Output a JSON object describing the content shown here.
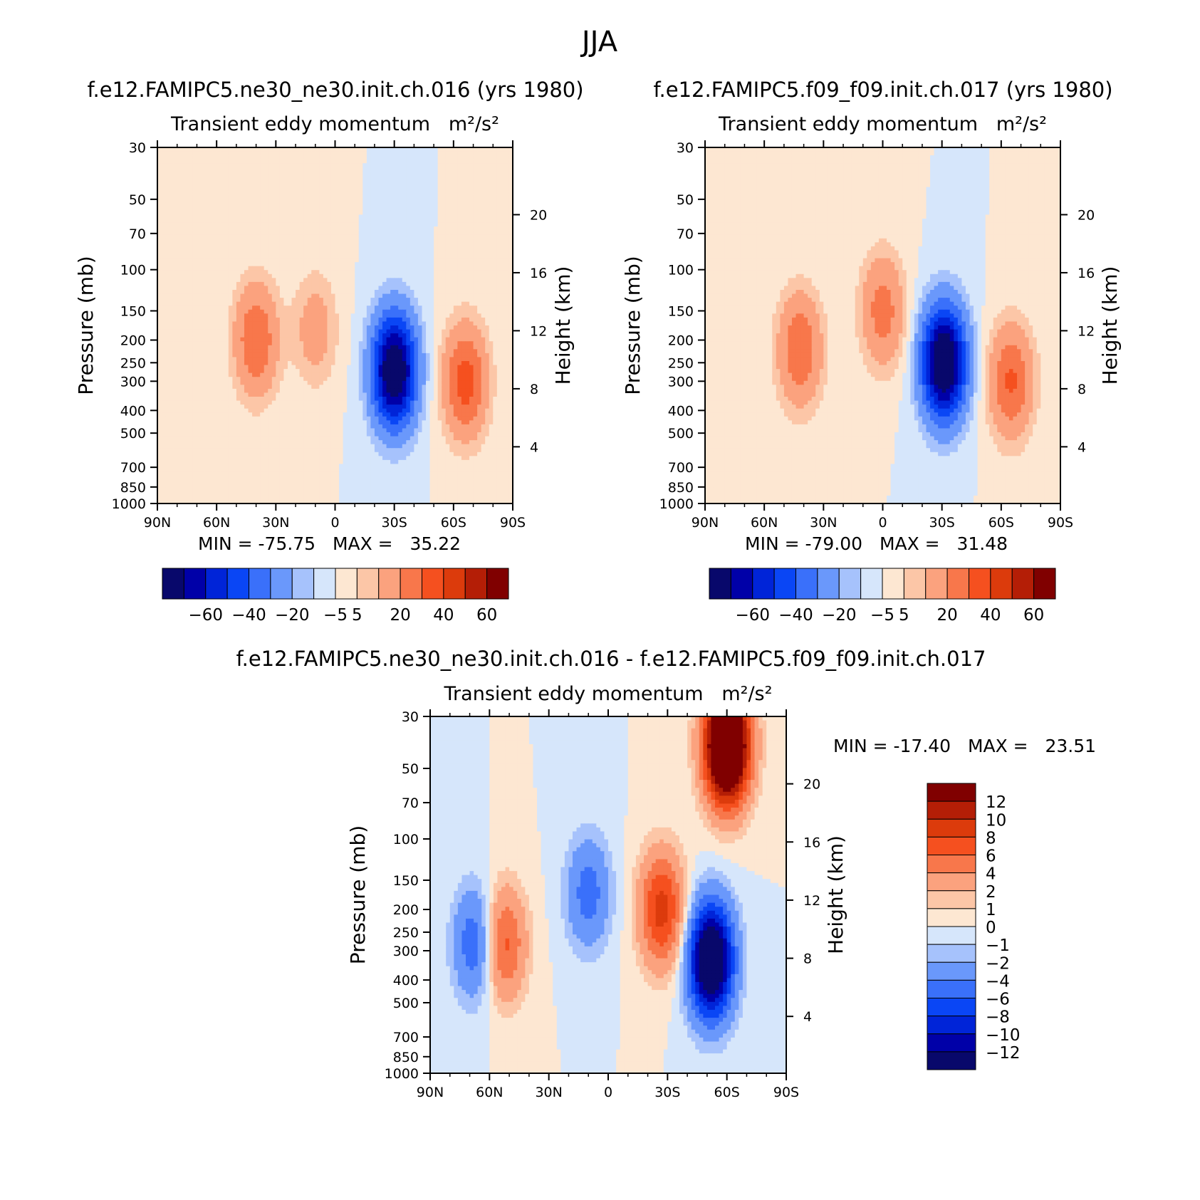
{
  "title": "JJA",
  "chart_data": [
    {
      "type": "heatmap",
      "title": "f.e12.FAMIPC5.ne30_ne30.init.ch.016 (yrs 1980)",
      "subtitle": "Transient eddy momentum",
      "units": "m²/s²",
      "ylabel": "Pressure (mb)",
      "y2label": "Height (km)",
      "x_ticks": [
        "90N",
        "60N",
        "30N",
        "0",
        "30S",
        "60S",
        "90S"
      ],
      "y_ticks": [
        30,
        50,
        70,
        100,
        150,
        200,
        250,
        300,
        400,
        500,
        700,
        850,
        1000
      ],
      "y2_ticks": [
        20,
        16,
        12,
        8,
        4
      ],
      "stats": {
        "min_label": "MIN =",
        "min": "-75.75",
        "max_label": "MAX =",
        "max": "35.22"
      },
      "colorbar": {
        "levels": [
          -70,
          -60,
          -50,
          -40,
          -30,
          -20,
          -10,
          -5,
          0,
          5,
          10,
          20,
          30,
          40,
          50,
          60,
          70
        ],
        "tick_labels": [
          "-60",
          "-40",
          "-20",
          "-5",
          "5",
          "20",
          "40",
          "60"
        ]
      },
      "features": [
        {
          "lat": -30,
          "pressure": 270,
          "value": -75.75
        },
        {
          "lat": 40,
          "pressure": 200,
          "value": 30
        },
        {
          "lat": 10,
          "pressure": 180,
          "value": 15
        },
        {
          "lat": -66,
          "pressure": 300,
          "value": 35.22
        }
      ]
    },
    {
      "type": "heatmap",
      "title": "f.e12.FAMIPC5.f09_f09.init.ch.017 (yrs 1980)",
      "subtitle": "Transient eddy momentum",
      "units": "m²/s²",
      "ylabel": "Pressure (mb)",
      "y2label": "Height (km)",
      "x_ticks": [
        "90N",
        "60N",
        "30N",
        "0",
        "30S",
        "60S",
        "90S"
      ],
      "y_ticks": [
        30,
        50,
        70,
        100,
        150,
        200,
        250,
        300,
        400,
        500,
        700,
        850,
        1000
      ],
      "y2_ticks": [
        20,
        16,
        12,
        8,
        4
      ],
      "stats": {
        "min_label": "MIN =",
        "min": "-79.00",
        "max_label": "MAX =",
        "max": "31.48"
      },
      "colorbar": {
        "levels": [
          -70,
          -60,
          -50,
          -40,
          -30,
          -20,
          -10,
          -5,
          0,
          5,
          10,
          20,
          30,
          40,
          50,
          60,
          70
        ],
        "tick_labels": [
          "-60",
          "-40",
          "-20",
          "-5",
          "5",
          "20",
          "40",
          "60"
        ]
      },
      "features": [
        {
          "lat": -31,
          "pressure": 250,
          "value": -79.0
        },
        {
          "lat": 42,
          "pressure": 220,
          "value": 30
        },
        {
          "lat": 0,
          "pressure": 150,
          "value": 25
        },
        {
          "lat": -65,
          "pressure": 300,
          "value": 31.48
        }
      ]
    },
    {
      "type": "heatmap",
      "title": "f.e12.FAMIPC5.ne30_ne30.init.ch.016 - f.e12.FAMIPC5.f09_f09.init.ch.017",
      "subtitle": "Transient eddy momentum",
      "units": "m²/s²",
      "ylabel": "Pressure (mb)",
      "y2label": "Height (km)",
      "x_ticks": [
        "90N",
        "60N",
        "30N",
        "0",
        "30S",
        "60S",
        "90S"
      ],
      "y_ticks": [
        30,
        50,
        70,
        100,
        150,
        200,
        250,
        300,
        400,
        500,
        700,
        850,
        1000
      ],
      "y2_ticks": [
        20,
        16,
        12,
        8,
        4
      ],
      "stats": {
        "min_label": "MIN =",
        "min": "-17.40",
        "max_label": "MAX =",
        "max": "23.51"
      },
      "colorbar": {
        "levels": [
          -14,
          -12,
          -10,
          -8,
          -6,
          -4,
          -2,
          -1,
          0,
          1,
          2,
          4,
          6,
          8,
          10,
          12,
          14
        ],
        "tick_labels": [
          "12",
          "10",
          "8",
          "6",
          "4",
          "2",
          "1",
          "0",
          "-1",
          "-2",
          "-4",
          "-6",
          "-8",
          "-10",
          "-12"
        ]
      },
      "features": [
        {
          "lat": -52,
          "pressure": 330,
          "value": -17.4
        },
        {
          "lat": -60,
          "pressure": 40,
          "value": 23.51
        },
        {
          "lat": 67,
          "pressure": 280,
          "value": -6
        },
        {
          "lat": 53,
          "pressure": 280,
          "value": 7
        },
        {
          "lat": -27,
          "pressure": 200,
          "value": 9
        },
        {
          "lat": 10,
          "pressure": 170,
          "value": -5
        }
      ]
    }
  ]
}
